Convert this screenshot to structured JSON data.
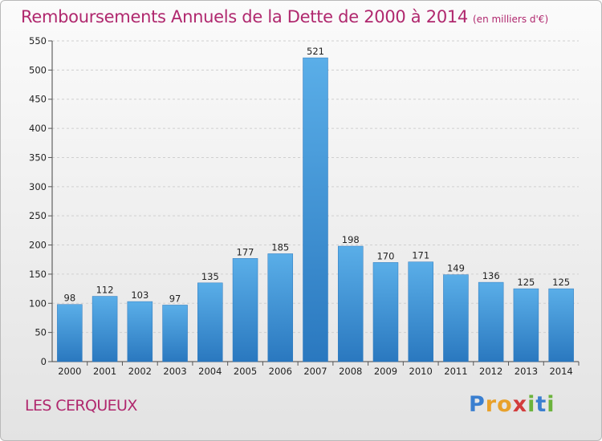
{
  "chart_data": {
    "type": "bar",
    "title": "Remboursements Annuels de la Dette de 2000 à 2014",
    "subtitle": "(en milliers d'€)",
    "categories": [
      "2000",
      "2001",
      "2002",
      "2003",
      "2004",
      "2005",
      "2006",
      "2007",
      "2008",
      "2009",
      "2010",
      "2011",
      "2012",
      "2013",
      "2014"
    ],
    "values": [
      98,
      112,
      103,
      97,
      135,
      177,
      185,
      521,
      198,
      170,
      171,
      149,
      136,
      125,
      125
    ],
    "ylim": [
      0,
      550
    ],
    "yticks": [
      0,
      50,
      100,
      150,
      200,
      250,
      300,
      350,
      400,
      450,
      500,
      550
    ],
    "grid": true,
    "bar_color": "#3d8fd6",
    "title_color": "#b0286e"
  },
  "footer": {
    "commune": "LES CERQUEUX",
    "logo_letters": [
      "P",
      "r",
      "o",
      "x",
      "i",
      "t",
      "i"
    ],
    "logo_colors": [
      "#3a7fd0",
      "#e8a12b",
      "#e8a12b",
      "#d23c3c",
      "#6bb33c",
      "#3a7fd0",
      "#6bb33c"
    ]
  }
}
